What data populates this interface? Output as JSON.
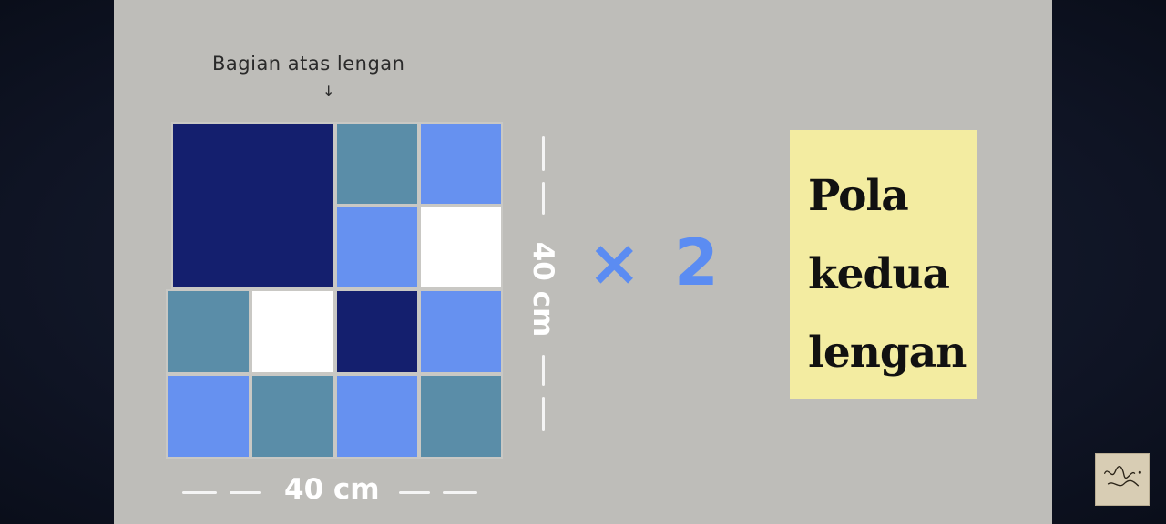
{
  "diagram": {
    "top_label": "Bagian atas lengan",
    "top_arrow": "↓",
    "width_label": "40 cm",
    "height_label": "40 cm",
    "multiplier": "× 2",
    "note_lines": [
      "Pola",
      "kedua",
      "lengan"
    ]
  },
  "colors": {
    "slide_background": "#bebdb9",
    "navy": "#141f6e",
    "teal": "#5a8da8",
    "blue": "#6691f0",
    "white": "#ffffff",
    "note_background": "#f3eca1",
    "multiplier": "#5b8cf2"
  },
  "pattern_tiles": [
    {
      "color": "navy"
    },
    {
      "color": "teal"
    },
    {
      "color": "blue"
    },
    {
      "color": "blue"
    },
    {
      "color": "white"
    },
    {
      "color": "teal"
    },
    {
      "color": "white"
    },
    {
      "color": "navy"
    },
    {
      "color": "blue"
    },
    {
      "color": "blue"
    },
    {
      "color": "teal"
    },
    {
      "color": "blue"
    },
    {
      "color": "teal"
    }
  ],
  "watermark": {
    "icon": "signature-logo-icon"
  }
}
